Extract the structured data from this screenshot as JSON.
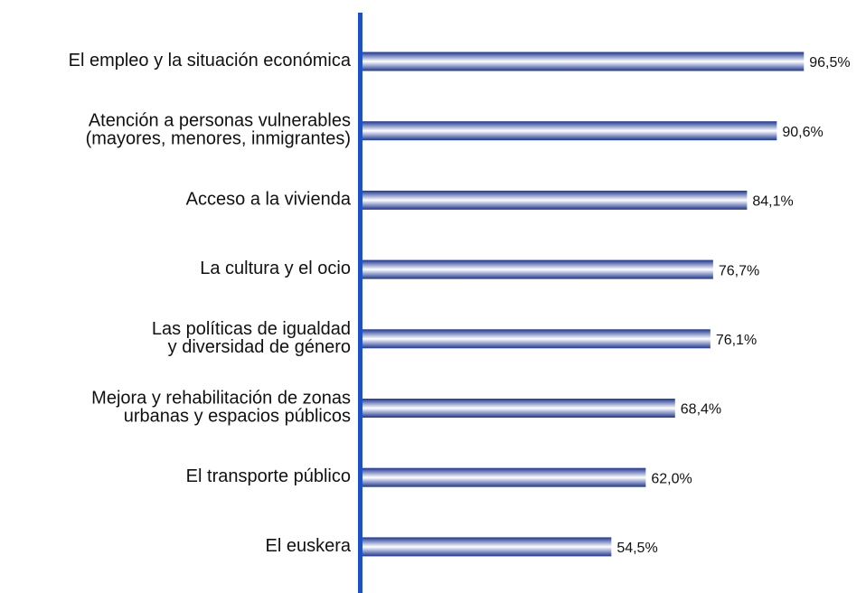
{
  "chart_data": {
    "type": "bar",
    "orientation": "horizontal",
    "categories": [
      [
        "El empleo y la situación económica"
      ],
      [
        "Atención a personas vulnerables",
        "(mayores, menores, inmigrantes)"
      ],
      [
        "Acceso a la vivienda"
      ],
      [
        "La cultura y el ocio"
      ],
      [
        "Las políticas de igualdad",
        "y diversidad de género"
      ],
      [
        "Mejora y rehabilitación de zonas",
        "urbanas y espacios públicos"
      ],
      [
        "El transporte público"
      ],
      [
        "El euskera"
      ]
    ],
    "values": [
      96.5,
      90.6,
      84.1,
      76.7,
      76.1,
      68.4,
      62.0,
      54.5
    ],
    "value_labels": [
      "96,5%",
      "90,6%",
      "84,1%",
      "76,7%",
      "76,1%",
      "68,4%",
      "62,0%",
      "54,5%"
    ],
    "color": "#1c3590",
    "axis_color": "#1f4fc4",
    "xlim": [
      0,
      100
    ]
  }
}
